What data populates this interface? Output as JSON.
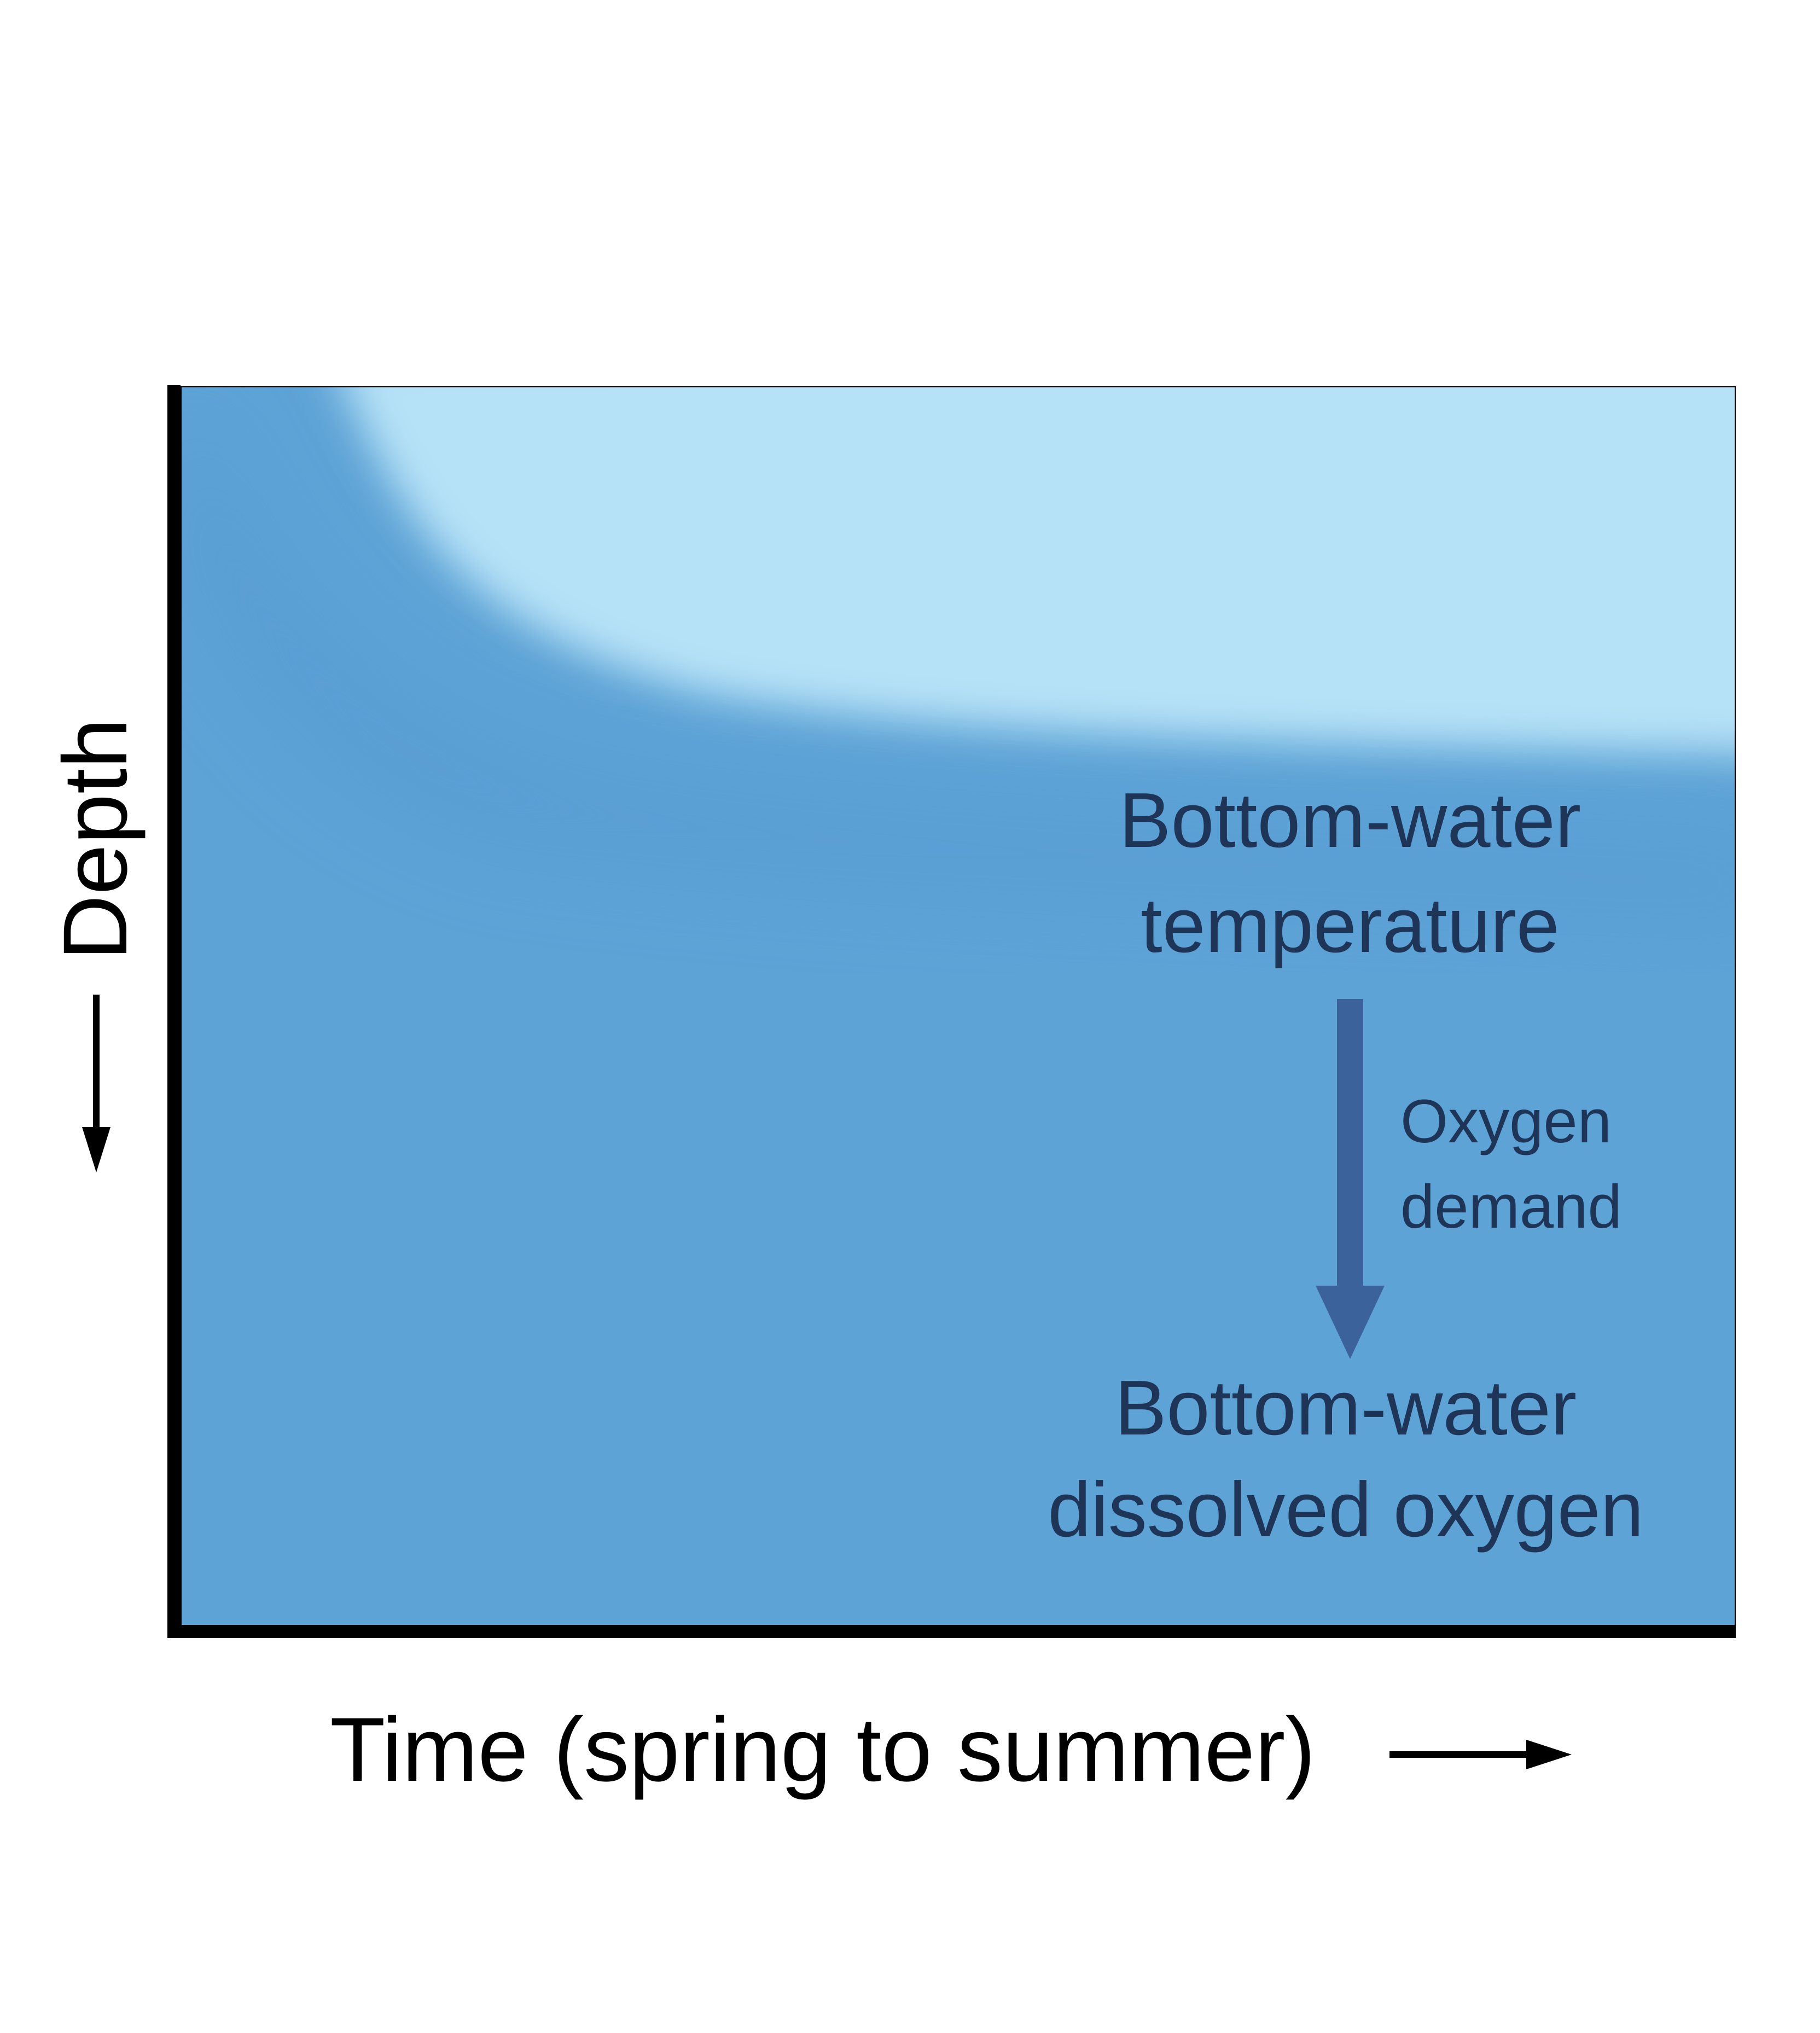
{
  "diagram": {
    "box_labels": {
      "temperature_line1": "Bottom-water",
      "temperature_line2": "temperature",
      "oxygen_line1": "Bottom-water",
      "oxygen_line2": "dissolved oxygen",
      "demand_line1": "Oxygen",
      "demand_line2": "demand"
    },
    "axes": {
      "x_label": "Time (spring to summer)",
      "y_label": "Depth"
    },
    "colors": {
      "deep_water": "#5ea3d6",
      "surface_water": "#b6e2f7",
      "arrow": "#3c629c",
      "label_text": "#1f3557",
      "axis": "#000000"
    }
  }
}
